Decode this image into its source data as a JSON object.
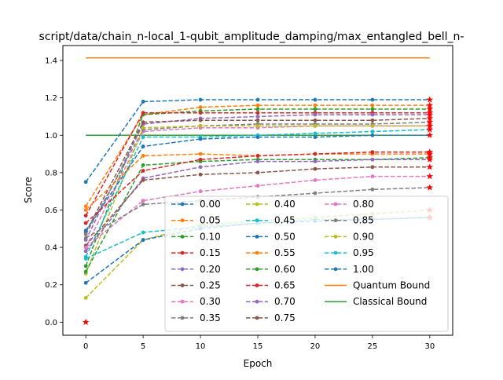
{
  "chart_data": {
    "type": "line",
    "title": "script/data/chain_n-local_1-qubit_amplitude_damping/max_entangled_bell_n-",
    "xlabel": "Epoch",
    "ylabel": "Score",
    "x": [
      0,
      5,
      10,
      15,
      20,
      25,
      30
    ],
    "xticks": [
      0,
      5,
      10,
      15,
      20,
      25,
      30
    ],
    "yticks": [
      0.0,
      0.2,
      0.4,
      0.6,
      0.8,
      1.0,
      1.2,
      1.4
    ],
    "xtick_labels": [
      "0",
      "5",
      "10",
      "15",
      "20",
      "25",
      "30"
    ],
    "ytick_labels": [
      "0.0",
      "0.2",
      "0.4",
      "0.6",
      "0.8",
      "1.0",
      "1.2",
      "1.4"
    ],
    "xlim": [
      -2,
      32
    ],
    "ylim": [
      -0.07,
      1.48
    ],
    "grid": false,
    "legend_position": "lower-right",
    "legend_columns": 3,
    "series": [
      {
        "name": "0.00",
        "color": "#1f77b4",
        "values": [
          0.75,
          1.18,
          1.19,
          1.19,
          1.19,
          1.19,
          1.19
        ]
      },
      {
        "name": "0.05",
        "color": "#ff7f0e",
        "values": [
          0.62,
          1.11,
          1.15,
          1.16,
          1.16,
          1.16,
          1.16
        ]
      },
      {
        "name": "0.10",
        "color": "#2ca02c",
        "values": [
          0.3,
          1.11,
          1.13,
          1.14,
          1.14,
          1.14,
          1.14
        ]
      },
      {
        "name": "0.15",
        "color": "#d62728",
        "values": [
          0.57,
          1.12,
          1.12,
          1.12,
          1.12,
          1.12,
          1.12
        ]
      },
      {
        "name": "0.20",
        "color": "#9467bd",
        "values": [
          0.44,
          1.06,
          1.09,
          1.1,
          1.11,
          1.11,
          1.11
        ]
      },
      {
        "name": "0.25",
        "color": "#8c564b",
        "values": [
          0.48,
          1.07,
          1.08,
          1.08,
          1.08,
          1.08,
          1.09
        ]
      },
      {
        "name": "0.30",
        "color": "#e377c2",
        "values": [
          0.4,
          1.02,
          1.04,
          1.04,
          1.05,
          1.05,
          1.05
        ]
      },
      {
        "name": "0.35",
        "color": "#7f7f7f",
        "values": [
          0.47,
          1.03,
          1.05,
          1.06,
          1.06,
          1.06,
          1.07
        ]
      },
      {
        "name": "0.40",
        "color": "#bcbd22",
        "values": [
          0.26,
          1.04,
          1.05,
          1.05,
          1.05,
          1.05,
          1.05
        ]
      },
      {
        "name": "0.45",
        "color": "#17becf",
        "values": [
          0.35,
          0.99,
          0.99,
          1.0,
          1.01,
          1.02,
          1.03
        ]
      },
      {
        "name": "0.50",
        "color": "#1f77b4",
        "values": [
          0.49,
          0.94,
          0.98,
          0.99,
          0.99,
          1.0,
          1.0
        ]
      },
      {
        "name": "0.55",
        "color": "#ff7f0e",
        "values": [
          0.6,
          0.89,
          0.9,
          0.89,
          0.9,
          0.9,
          0.9
        ]
      },
      {
        "name": "0.60",
        "color": "#2ca02c",
        "values": [
          0.27,
          0.84,
          0.86,
          0.87,
          0.87,
          0.87,
          0.88
        ]
      },
      {
        "name": "0.65",
        "color": "#d62728",
        "values": [
          0.53,
          0.81,
          0.87,
          0.89,
          0.9,
          0.91,
          0.91
        ]
      },
      {
        "name": "0.70",
        "color": "#9467bd",
        "values": [
          0.38,
          0.77,
          0.83,
          0.86,
          0.86,
          0.87,
          0.87
        ]
      },
      {
        "name": "0.75",
        "color": "#8c564b",
        "values": [
          0.41,
          0.76,
          0.79,
          0.8,
          0.82,
          0.83,
          0.83
        ]
      },
      {
        "name": "0.80",
        "color": "#e377c2",
        "values": [
          0.4,
          0.65,
          0.7,
          0.73,
          0.76,
          0.78,
          0.78
        ]
      },
      {
        "name": "0.85",
        "color": "#7f7f7f",
        "values": [
          0.45,
          0.63,
          0.65,
          0.67,
          0.69,
          0.71,
          0.72
        ]
      },
      {
        "name": "0.90",
        "color": "#bcbd22",
        "values": [
          0.13,
          0.44,
          0.52,
          0.54,
          0.56,
          0.58,
          0.6
        ]
      },
      {
        "name": "0.95",
        "color": "#17becf",
        "values": [
          0.34,
          0.48,
          0.51,
          0.53,
          0.55,
          0.55,
          0.56
        ]
      },
      {
        "name": "1.00",
        "color": "#1f77b4",
        "values": [
          0.21,
          0.44,
          0.5,
          0.53,
          0.54,
          0.55,
          0.56
        ]
      }
    ],
    "bounds": [
      {
        "name": "Quantum Bound",
        "color": "#ff7f0e",
        "value": 1.414
      },
      {
        "name": "Classical Bound",
        "color": "#2ca02c",
        "value": 1.0
      }
    ],
    "zero_marker": {
      "x": 0,
      "y": 0.0,
      "color": "#ff0000"
    },
    "final_marker_color": "#ff0000"
  }
}
